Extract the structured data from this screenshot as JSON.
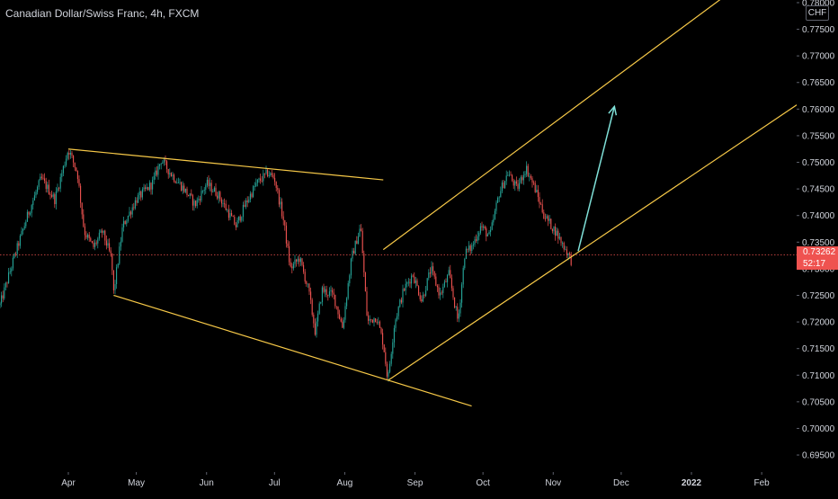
{
  "header": {
    "title": "Canadian Dollar/Swiss Franc, 4h, FXCM",
    "currency": "CHF"
  },
  "current_price": {
    "price_label": "0.73262",
    "countdown": "52:17",
    "color": "#ef5350"
  },
  "colors": {
    "background": "#000000",
    "up_candle": "#26a69a",
    "down_candle": "#ef5350",
    "trendline": "#f7c948",
    "arrow": "#7fe0d8",
    "axis_text": "#d1d4dc"
  },
  "chart_data": {
    "type": "candlestick",
    "title": "Canadian Dollar/Swiss Franc, 4h, FXCM",
    "ylim": [
      0.6918,
      0.7805
    ],
    "y_ticks": [
      "0.78000",
      "0.77500",
      "0.77000",
      "0.76500",
      "0.76000",
      "0.75500",
      "0.75000",
      "0.74500",
      "0.74000",
      "0.73500",
      "0.73000",
      "0.72500",
      "0.72000",
      "0.71500",
      "0.71000",
      "0.70500",
      "0.70000",
      "0.69500"
    ],
    "x_ticks": [
      "Apr",
      "May",
      "Jun",
      "Jul",
      "Aug",
      "Sep",
      "Oct",
      "Nov",
      "Dec",
      "2022",
      "Feb"
    ],
    "grid": false,
    "series_path": [
      [
        "Mar 1",
        0.722
      ],
      [
        "Mar 8",
        0.732
      ],
      [
        "Mar 14",
        0.74
      ],
      [
        "Mar 20",
        0.747
      ],
      [
        "Mar 26",
        0.743
      ],
      [
        "Apr 1",
        0.7525
      ],
      [
        "Apr 5",
        0.748
      ],
      [
        "Apr 8",
        0.737
      ],
      [
        "Apr 12",
        0.734
      ],
      [
        "Apr 16",
        0.737
      ],
      [
        "Apr 20",
        0.732
      ],
      [
        "Apr 21",
        0.7255
      ],
      [
        "Apr 25",
        0.738
      ],
      [
        "May 1",
        0.743
      ],
      [
        "May 8",
        0.746
      ],
      [
        "May 12",
        0.7505
      ],
      [
        "May 16",
        0.748
      ],
      [
        "May 22",
        0.745
      ],
      [
        "May 27",
        0.742
      ],
      [
        "Jun 1",
        0.746
      ],
      [
        "Jun 6",
        0.744
      ],
      [
        "Jun 10",
        0.741
      ],
      [
        "Jun 14",
        0.738
      ],
      [
        "Jun 18",
        0.742
      ],
      [
        "Jun 23",
        0.746
      ],
      [
        "Jun 28",
        0.748
      ],
      [
        "Jul 1",
        0.747
      ],
      [
        "Jul 5",
        0.739
      ],
      [
        "Jul 8",
        0.73
      ],
      [
        "Jul 12",
        0.732
      ],
      [
        "Jul 16",
        0.726
      ],
      [
        "Jul 19",
        0.718
      ],
      [
        "Jul 22",
        0.726
      ],
      [
        "Jul 27",
        0.725
      ],
      [
        "Jul 31",
        0.719
      ],
      [
        "Aug 4",
        0.732
      ],
      [
        "Aug 8",
        0.738
      ],
      [
        "Aug 11",
        0.72
      ],
      [
        "Aug 15",
        0.721
      ],
      [
        "Aug 18",
        0.716
      ],
      [
        "Aug 20",
        0.709
      ],
      [
        "Aug 23",
        0.72
      ],
      [
        "Aug 27",
        0.726
      ],
      [
        "Aug 31",
        0.729
      ],
      [
        "Sep 4",
        0.724
      ],
      [
        "Sep 8",
        0.73
      ],
      [
        "Sep 12",
        0.725
      ],
      [
        "Sep 16",
        0.729
      ],
      [
        "Sep 20",
        0.72
      ],
      [
        "Sep 23",
        0.733
      ],
      [
        "Sep 26",
        0.734
      ],
      [
        "Sep 30",
        0.738
      ],
      [
        "Oct 4",
        0.736
      ],
      [
        "Oct 8",
        0.744
      ],
      [
        "Oct 12",
        0.748
      ],
      [
        "Oct 16",
        0.745
      ],
      [
        "Oct 20",
        0.749
      ],
      [
        "Oct 24",
        0.745
      ],
      [
        "Oct 28",
        0.74
      ],
      [
        "Nov 2",
        0.737
      ],
      [
        "Nov 6",
        0.734
      ],
      [
        "Nov 9",
        0.7315
      ]
    ],
    "annotations": {
      "lines": [
        {
          "name": "upper-triangle-line",
          "from": [
            "Apr 1",
            0.7525
          ],
          "to": [
            "Aug 18",
            0.7467
          ]
        },
        {
          "name": "lower-triangle-line",
          "from": [
            "Apr 21",
            0.725
          ],
          "to": [
            "Sep 26",
            0.7042
          ]
        },
        {
          "name": "channel-upper-line",
          "from": [
            "Aug 18",
            0.7336
          ],
          "to": [
            "Jan 15",
            0.781
          ]
        },
        {
          "name": "channel-lower-line",
          "from": [
            "Aug 20",
            0.709
          ],
          "to": [
            "Feb 20",
            0.7618
          ]
        },
        {
          "name": "projection-arrow",
          "from": [
            "Nov 12",
            0.7333
          ],
          "to": [
            "Nov 28",
            0.7605
          ]
        }
      ]
    }
  }
}
